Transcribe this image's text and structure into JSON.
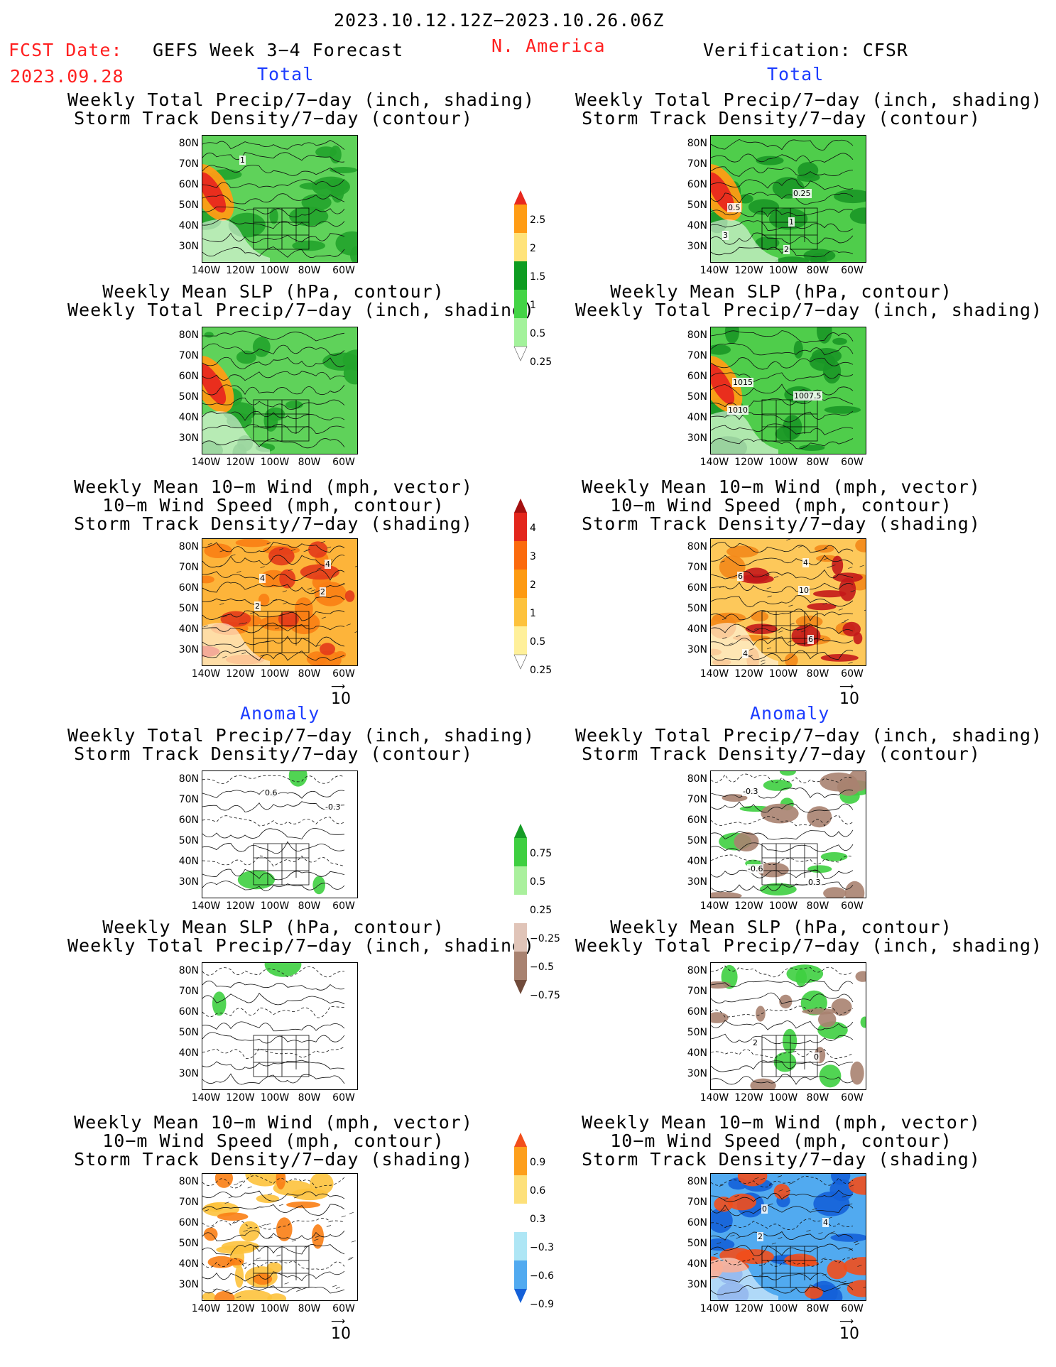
{
  "header": {
    "date_range": "2023.10.12.12Z−2023.10.26.06Z",
    "fcst_date_label": "FCST Date:",
    "fcst_date_value": "2023.09.28",
    "model_title": "GEFS Week 3−4 Forecast",
    "region": "N. America",
    "verification": "Verification: CFSR"
  },
  "sections": {
    "total_left": "Total",
    "total_right": "Total",
    "anomaly_left": "Anomaly",
    "anomaly_right": "Anomaly"
  },
  "titles": {
    "precip_storm": [
      "Weekly Total Precip/7−day (inch, shading)",
      "Storm Track Density/7−day (contour)"
    ],
    "slp_precip": [
      "Weekly Mean SLP (hPa, contour)",
      "Weekly Total Precip/7−day (inch, shading)"
    ],
    "wind_storm": [
      "Weekly Mean 10−m Wind (mph, vector)",
      "10−m Wind Speed (mph, contour)",
      "Storm Track Density/7−day (shading)"
    ]
  },
  "axes": {
    "lat_labels": [
      "80N",
      "70N",
      "60N",
      "50N",
      "40N",
      "30N"
    ],
    "lon_labels": [
      "140W",
      "120W",
      "100W",
      "80W",
      "60W"
    ]
  },
  "vector_reference": "10",
  "colorbars": {
    "precip_total": {
      "labels": [
        "2.5",
        "2",
        "1.5",
        "1",
        "0.5",
        "0.25"
      ],
      "colors": [
        "#e8281e",
        "#ff9c14",
        "#ffe37a",
        "#0e9c21",
        "#43d445",
        "#a3f29b",
        "#ffffff"
      ]
    },
    "storm_total": {
      "labels": [
        "4",
        "3",
        "2",
        "1",
        "0.5",
        "0.25"
      ],
      "colors": [
        "#a41010",
        "#e3261c",
        "#fb6a0d",
        "#fd9a12",
        "#fdc23c",
        "#fff09a",
        "#ffffff"
      ]
    },
    "precip_anom": {
      "labels": [
        "0.75",
        "0.5",
        "0.25",
        "−0.25",
        "−0.5",
        "−0.75"
      ],
      "colors": [
        "#159c25",
        "#3ecf40",
        "#aaf09d",
        "#ffffff",
        "#e0c4b8",
        "#a88270",
        "#704a3a"
      ]
    },
    "storm_anom": {
      "labels": [
        "0.9",
        "0.6",
        "0.3",
        "−0.3",
        "−0.6",
        "−0.9"
      ],
      "colors": [
        "#f24e1b",
        "#fd9f1c",
        "#fde07a",
        "#ffffff",
        "#aee6f5",
        "#51aaf0",
        "#1460d8"
      ]
    }
  },
  "panels": [
    {
      "id": "fcst-total-precip-storm",
      "title_key": "precip_storm",
      "labels": [
        "1"
      ]
    },
    {
      "id": "obs-total-precip-storm",
      "title_key": "precip_storm",
      "labels": [
        "2",
        "3",
        "1",
        "0.5",
        "0.25"
      ]
    },
    {
      "id": "fcst-total-slp-precip",
      "title_key": "slp_precip",
      "labels": []
    },
    {
      "id": "obs-total-slp-precip",
      "title_key": "slp_precip",
      "labels": [
        "1010",
        "1007.5",
        "1015"
      ]
    },
    {
      "id": "fcst-total-wind-storm",
      "title_key": "wind_storm",
      "labels": [
        "2",
        "2",
        "4",
        "4"
      ]
    },
    {
      "id": "obs-total-wind-storm",
      "title_key": "wind_storm",
      "labels": [
        "10",
        "6",
        "4",
        "4",
        "6"
      ]
    },
    {
      "id": "fcst-anom-precip-storm",
      "title_key": "precip_storm",
      "labels": [
        "-0.3",
        "0.6"
      ]
    },
    {
      "id": "obs-anom-precip-storm",
      "title_key": "precip_storm",
      "labels": [
        "-0.3",
        "0.3",
        "-0.6"
      ]
    },
    {
      "id": "fcst-anom-slp-precip",
      "title_key": "slp_precip",
      "labels": []
    },
    {
      "id": "obs-anom-slp-precip",
      "title_key": "slp_precip",
      "labels": [
        "0",
        "2"
      ]
    },
    {
      "id": "fcst-anom-wind-storm",
      "title_key": "wind_storm",
      "labels": []
    },
    {
      "id": "obs-anom-wind-storm",
      "title_key": "wind_storm",
      "labels": [
        "2",
        "4",
        "0"
      ]
    }
  ]
}
